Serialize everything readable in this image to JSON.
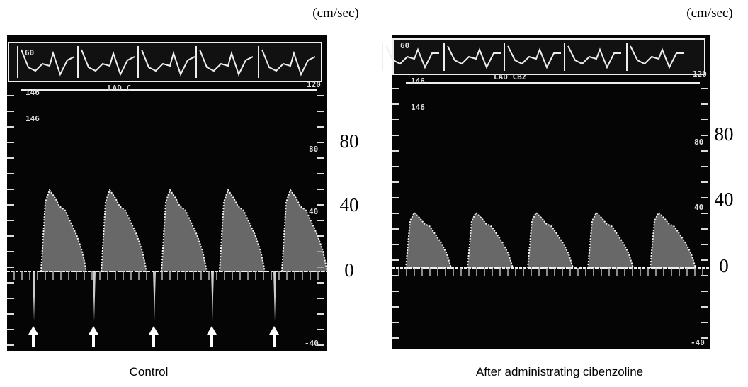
{
  "panels": [
    {
      "unit": "(cm/sec)",
      "scale_labels": [
        "80",
        "40",
        "0"
      ],
      "screen_labels": [
        "60",
        "146",
        "146",
        "LAD C",
        "120",
        "80",
        "40",
        "-40"
      ],
      "caption": "Control"
    },
    {
      "unit": "(cm/sec)",
      "scale_labels": [
        "80",
        "40",
        "0"
      ],
      "screen_labels": [
        "60",
        "146",
        "146",
        "LAD CBZ",
        "120",
        "80",
        "40",
        "-40"
      ],
      "caption": "After administrating cibenzoline"
    }
  ]
}
